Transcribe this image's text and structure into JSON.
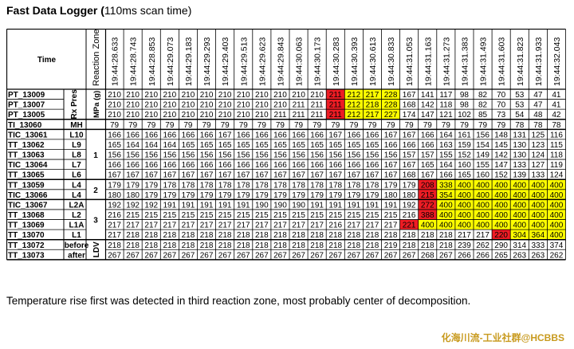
{
  "title_bold": "Fast Data Logger (",
  "title_normal": "110ms scan time)",
  "caption": "Temperature rise first was detected in third reaction zone, most probably center of decomposition.",
  "watermark": "化海川流-工业社群@HCBBS",
  "header": {
    "time_label": "Time",
    "zone_label": "Reaction Zone"
  },
  "times": [
    "19:44:28.633",
    "19:44:28.743",
    "19:44:28.853",
    "19:44:29.073",
    "19:44:29.183",
    "19:44:29.293",
    "19:44:29.403",
    "19:44:29.513",
    "19:44:29.623",
    "19:44:29.843",
    "19:44:30.063",
    "19:44:30.173",
    "19:44:30.283",
    "19:44:30.393",
    "19:44:30.613",
    "19:44:30.833",
    "19:44:31.053",
    "19:44:31.163",
    "19:44:31.273",
    "19:44:31.383",
    "19:44:31.493",
    "19:44:31.603",
    "19:44:31.823",
    "19:44:31.933",
    "19:44:32.043"
  ],
  "colors": {
    "red": "#ee1c24",
    "yellow": "#ffff00",
    "white": "#ffffff"
  },
  "groups": [
    {
      "labels": [
        "Rx Pres",
        "MPa (g)"
      ],
      "rows": [
        {
          "tag": "PT_13009",
          "sub": "",
          "values": [
            210,
            210,
            210,
            210,
            210,
            210,
            210,
            210,
            210,
            210,
            210,
            210,
            211,
            212,
            217,
            228,
            167,
            141,
            117,
            98,
            82,
            70,
            53,
            47,
            41
          ],
          "colors": [
            "",
            "",
            "",
            "",
            "",
            "",
            "",
            "",
            "",
            "",
            "",
            "",
            "r",
            "y",
            "y",
            "y",
            "",
            "",
            "",
            "",
            "",
            "",
            "",
            "",
            ""
          ]
        },
        {
          "tag": "PT_13007",
          "sub": "",
          "values": [
            210,
            210,
            210,
            210,
            210,
            210,
            210,
            210,
            210,
            210,
            211,
            211,
            211,
            212,
            218,
            228,
            168,
            142,
            118,
            98,
            82,
            70,
            53,
            47,
            41
          ],
          "colors": [
            "",
            "",
            "",
            "",
            "",
            "",
            "",
            "",
            "",
            "",
            "",
            "",
            "r",
            "y",
            "y",
            "y",
            "",
            "",
            "",
            "",
            "",
            "",
            "",
            "",
            ""
          ]
        },
        {
          "tag": "PT_13005",
          "sub": "",
          "values": [
            210,
            210,
            210,
            210,
            210,
            210,
            210,
            210,
            210,
            211,
            211,
            211,
            211,
            212,
            217,
            227,
            174,
            147,
            121,
            102,
            85,
            73,
            54,
            48,
            42
          ],
          "colors": [
            "",
            "",
            "",
            "",
            "",
            "",
            "",
            "",
            "",
            "",
            "",
            "",
            "r",
            "y",
            "y",
            "y",
            "",
            "",
            "",
            "",
            "",
            "",
            "",
            "",
            ""
          ]
        }
      ]
    },
    {
      "labels": [
        ""
      ],
      "rows": [
        {
          "tag": "TI_13060",
          "sub": "MH",
          "values": [
            79,
            79,
            79,
            79,
            79,
            79,
            79,
            79,
            79,
            79,
            79,
            79,
            79,
            79,
            79,
            79,
            79,
            79,
            79,
            79,
            79,
            79,
            78,
            78,
            78
          ],
          "colors": []
        }
      ]
    },
    {
      "labels": [
        "1"
      ],
      "rows": [
        {
          "tag": "TIC_13061",
          "sub": "L10",
          "values": [
            166,
            166,
            166,
            166,
            166,
            166,
            167,
            166,
            166,
            166,
            166,
            166,
            167,
            166,
            166,
            167,
            167,
            166,
            164,
            161,
            156,
            148,
            131,
            125,
            116
          ],
          "colors": []
        },
        {
          "tag": "TT_13062",
          "sub": "L9",
          "values": [
            165,
            164,
            164,
            164,
            165,
            165,
            165,
            165,
            165,
            165,
            165,
            165,
            165,
            165,
            165,
            166,
            166,
            166,
            163,
            159,
            154,
            145,
            130,
            123,
            115
          ],
          "colors": []
        },
        {
          "tag": "TT_13063",
          "sub": "L8",
          "values": [
            156,
            156,
            156,
            156,
            156,
            156,
            156,
            156,
            156,
            156,
            156,
            156,
            156,
            156,
            156,
            156,
            157,
            157,
            155,
            152,
            149,
            142,
            130,
            124,
            118
          ],
          "colors": []
        },
        {
          "tag": "TIC_13064",
          "sub": "L7",
          "values": [
            166,
            166,
            166,
            166,
            166,
            166,
            166,
            166,
            166,
            166,
            166,
            166,
            166,
            166,
            166,
            167,
            167,
            165,
            164,
            160,
            155,
            147,
            133,
            127,
            119
          ],
          "colors": []
        },
        {
          "tag": "TT_13065",
          "sub": "L6",
          "values": [
            167,
            167,
            167,
            167,
            167,
            167,
            167,
            167,
            167,
            167,
            167,
            167,
            167,
            167,
            167,
            167,
            168,
            167,
            166,
            165,
            160,
            152,
            139,
            133,
            124
          ],
          "colors": []
        }
      ]
    },
    {
      "labels": [
        "2"
      ],
      "rows": [
        {
          "tag": "TT_13059",
          "sub": "L4",
          "values": [
            179,
            179,
            179,
            178,
            178,
            178,
            178,
            178,
            178,
            178,
            178,
            178,
            178,
            178,
            178,
            179,
            179,
            208,
            338,
            400,
            400,
            400,
            400,
            400,
            400
          ],
          "colors": [
            "",
            "",
            "",
            "",
            "",
            "",
            "",
            "",
            "",
            "",
            "",
            "",
            "",
            "",
            "",
            "",
            "",
            "r",
            "y",
            "y",
            "y",
            "y",
            "y",
            "y",
            "y"
          ]
        },
        {
          "tag": "TIC_13066",
          "sub": "L4",
          "values": [
            180,
            180,
            179,
            179,
            179,
            179,
            179,
            179,
            179,
            179,
            179,
            179,
            179,
            179,
            179,
            180,
            180,
            215,
            354,
            400,
            400,
            400,
            400,
            400,
            400
          ],
          "colors": [
            "",
            "",
            "",
            "",
            "",
            "",
            "",
            "",
            "",
            "",
            "",
            "",
            "",
            "",
            "",
            "",
            "",
            "r",
            "y",
            "y",
            "y",
            "y",
            "y",
            "y",
            "y"
          ]
        }
      ]
    },
    {
      "labels": [
        "3"
      ],
      "rows": [
        {
          "tag": "TIC_13067",
          "sub": "L2A",
          "values": [
            192,
            192,
            192,
            191,
            191,
            191,
            191,
            191,
            190,
            190,
            190,
            191,
            191,
            191,
            191,
            191,
            192,
            272,
            400,
            400,
            400,
            400,
            400,
            400,
            400
          ],
          "colors": [
            "",
            "",
            "",
            "",
            "",
            "",
            "",
            "",
            "",
            "",
            "",
            "",
            "",
            "",
            "",
            "",
            "",
            "r",
            "y",
            "y",
            "y",
            "y",
            "y",
            "y",
            "y"
          ]
        },
        {
          "tag": "TT_13068",
          "sub": "L2",
          "values": [
            216,
            215,
            215,
            215,
            215,
            215,
            215,
            215,
            215,
            215,
            215,
            215,
            215,
            215,
            215,
            215,
            216,
            388,
            400,
            400,
            400,
            400,
            400,
            400,
            400
          ],
          "colors": [
            "",
            "",
            "",
            "",
            "",
            "",
            "",
            "",
            "",
            "",
            "",
            "",
            "",
            "",
            "",
            "",
            "",
            "r",
            "y",
            "y",
            "y",
            "y",
            "y",
            "y",
            "y"
          ]
        },
        {
          "tag": "TT_13069",
          "sub": "L1A",
          "values": [
            217,
            217,
            217,
            217,
            217,
            217,
            217,
            217,
            217,
            217,
            217,
            217,
            216,
            217,
            217,
            217,
            221,
            400,
            400,
            400,
            400,
            400,
            400,
            400,
            400
          ],
          "colors": [
            "",
            "",
            "",
            "",
            "",
            "",
            "",
            "",
            "",
            "",
            "",
            "",
            "",
            "",
            "",
            "",
            "r",
            "y",
            "y",
            "y",
            "y",
            "y",
            "y",
            "y",
            "y"
          ]
        },
        {
          "tag": "TT_13070",
          "sub": "L1",
          "values": [
            217,
            218,
            218,
            218,
            218,
            218,
            218,
            218,
            218,
            218,
            218,
            218,
            218,
            218,
            218,
            218,
            218,
            218,
            218,
            217,
            217,
            220,
            304,
            364,
            400
          ],
          "colors": [
            "",
            "",
            "",
            "",
            "",
            "",
            "",
            "",
            "",
            "",
            "",
            "",
            "",
            "",
            "",
            "",
            "",
            "",
            "",
            "",
            "",
            "r",
            "y",
            "y",
            "y"
          ]
        }
      ]
    },
    {
      "labels": [
        "LDV"
      ],
      "rows": [
        {
          "tag": "TT_13072",
          "sub": "before",
          "values": [
            218,
            218,
            218,
            218,
            218,
            218,
            218,
            218,
            218,
            218,
            218,
            218,
            218,
            218,
            218,
            219,
            218,
            218,
            218,
            239,
            262,
            290,
            314,
            333,
            374
          ],
          "colors": []
        },
        {
          "tag": "TT_13073",
          "sub": "after",
          "values": [
            267,
            267,
            267,
            267,
            267,
            267,
            267,
            267,
            267,
            267,
            267,
            267,
            267,
            267,
            267,
            267,
            267,
            268,
            267,
            266,
            266,
            265,
            263,
            263,
            262
          ],
          "colors": []
        }
      ]
    }
  ]
}
